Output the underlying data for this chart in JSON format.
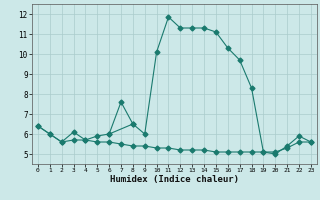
{
  "xlabel": "Humidex (Indice chaleur)",
  "ylabel": "",
  "background_color": "#cce8e8",
  "grid_color": "#aacccc",
  "line_color": "#1a7a6e",
  "xlim": [
    -0.5,
    23.5
  ],
  "ylim": [
    4.5,
    12.5
  ],
  "xticks": [
    0,
    1,
    2,
    3,
    4,
    5,
    6,
    7,
    8,
    9,
    10,
    11,
    12,
    13,
    14,
    15,
    16,
    17,
    18,
    19,
    20,
    21,
    22,
    23
  ],
  "yticks": [
    5,
    6,
    7,
    8,
    9,
    10,
    11,
    12
  ],
  "series1_x": [
    0,
    1,
    2,
    3,
    4,
    5,
    6,
    8,
    9,
    10,
    11,
    12,
    13,
    14,
    15,
    16,
    17,
    18,
    19,
    20,
    21,
    22,
    23
  ],
  "series1_y": [
    6.4,
    6.0,
    5.6,
    6.1,
    5.7,
    5.9,
    6.0,
    6.5,
    6.0,
    10.1,
    11.85,
    11.3,
    11.3,
    11.3,
    11.1,
    10.3,
    9.7,
    8.3,
    5.1,
    5.0,
    5.4,
    5.9,
    5.6
  ],
  "series2_x": [
    0,
    1,
    2,
    3,
    4,
    5,
    6,
    7,
    8,
    9,
    10,
    11,
    12,
    13,
    14,
    15,
    16,
    17,
    18,
    19,
    20,
    21,
    22,
    23
  ],
  "series2_y": [
    6.4,
    6.0,
    5.6,
    5.7,
    5.7,
    5.6,
    5.6,
    5.5,
    5.4,
    5.4,
    5.3,
    5.3,
    5.2,
    5.2,
    5.2,
    5.1,
    5.1,
    5.1,
    5.1,
    5.1,
    5.1,
    5.3,
    5.6,
    5.6
  ],
  "series3_x": [
    6,
    7,
    8
  ],
  "series3_y": [
    6.0,
    7.6,
    6.5
  ],
  "marker_size": 2.5
}
